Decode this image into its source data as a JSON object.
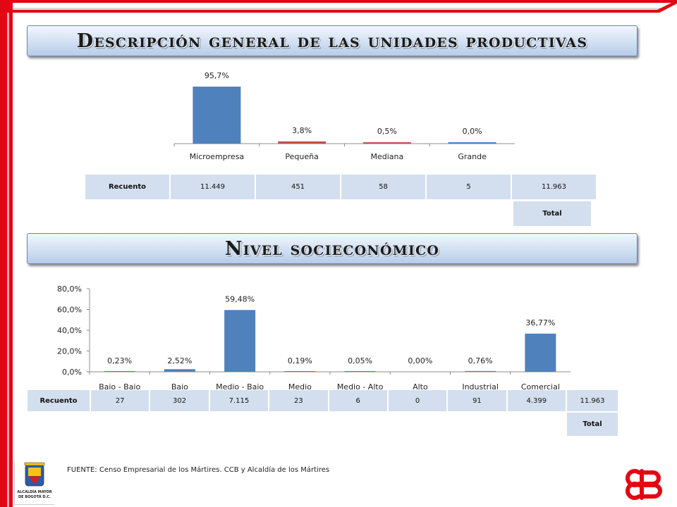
{
  "colors": {
    "frame": "#e30613",
    "bar": "#4f81bd",
    "bar_alt": "#c0504d",
    "table": "#d3dfee"
  },
  "section1": {
    "title": "Descripción general de las unidades productivas"
  },
  "section2": {
    "title": "Nivel socieconómico"
  },
  "chart_data": [
    {
      "type": "bar",
      "categories": [
        "Microempresa",
        "Pequeña",
        "Mediana",
        "Grande"
      ],
      "values": [
        95.7,
        3.8,
        0.5,
        0.0
      ],
      "data_labels": [
        "95,7%",
        "3,8%",
        "0,5%",
        "0,0%"
      ],
      "bar_colors": [
        "#4f81bd",
        "#c0504d",
        "#c0504d",
        "#4f81bd"
      ],
      "ylim": [
        0,
        100
      ],
      "y_axis": false,
      "grid": false,
      "title": "",
      "xlabel": "",
      "ylabel": ""
    },
    {
      "type": "bar",
      "categories": [
        "Bajo - Bajo",
        "Bajo",
        "Medio - Bajo",
        "Medio",
        "Medio - Alto",
        "Alto",
        "Industrial",
        "Comercial"
      ],
      "values": [
        0.23,
        2.52,
        59.48,
        0.19,
        0.05,
        0.0,
        0.76,
        36.77
      ],
      "data_labels": [
        "0,23%",
        "2,52%",
        "59,48%",
        "0,19%",
        "0,05%",
        "0,00%",
        "0,76%",
        "36,77%"
      ],
      "yticks": [
        "0,0%",
        "20,0%",
        "40,0%",
        "60,0%",
        "80,0%"
      ],
      "ylim": [
        0,
        80
      ],
      "grid": false,
      "title": "",
      "xlabel": "",
      "ylabel": ""
    }
  ],
  "table1": {
    "header": "Recuento",
    "values": [
      "11.449",
      "451",
      "58",
      "5"
    ],
    "total": "11.963",
    "total_label": "Total"
  },
  "table2": {
    "header": "Recuento",
    "values": [
      "27",
      "302",
      "7.115",
      "23",
      "6",
      "0",
      "91",
      "4.399"
    ],
    "total": "11.963",
    "total_label": "Total"
  },
  "footer": {
    "source": "FUENTE: Censo Empresarial de los Mártires. CCB y Alcaldía de los Mártires"
  },
  "logos": {
    "bogota_text": [
      "ALCALDÍA MAYOR",
      "DE BOGOTÁ D.C."
    ],
    "icons": [
      "bogota-coat-of-arms-icon",
      "ccb-logo-icon"
    ]
  }
}
